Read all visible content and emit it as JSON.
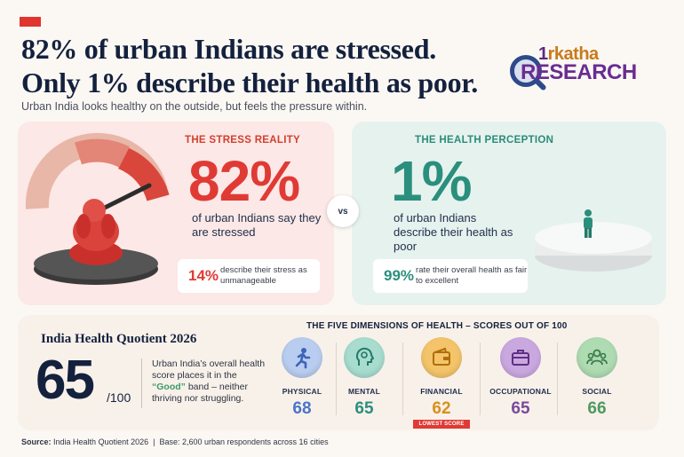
{
  "header": {
    "headline_line1": "82% of urban Indians are stressed.",
    "headline_line2": "Only 1% describe their health as poor.",
    "subhead": "Urban India looks healthy on the outside, but feels the pressure within."
  },
  "logo": {
    "top_text_a": "1",
    "top_text_b": "rkatha",
    "bottom_text": "RESEARCH"
  },
  "stress": {
    "kicker": "THE STRESS REALITY",
    "value": "82%",
    "description": "of urban Indians say they are stressed",
    "stat_value": "14%",
    "stat_text": "describe their stress as unmanageable"
  },
  "vs_label": "vs",
  "health": {
    "kicker": "THE HEALTH PERCEPTION",
    "value": "1%",
    "description": "of urban Indians describe their health as poor",
    "stat_value": "99%",
    "stat_text": "rate their overall health as fair to excellent"
  },
  "quotient": {
    "title": "India Health Quotient 2026",
    "score": "65",
    "out_of": "/100",
    "desc_before": "Urban India’s overall health score places it in the ",
    "desc_good": "“Good”",
    "desc_after": " band – neither thriving nor struggling."
  },
  "dimensions": {
    "title": "THE FIVE DIMENSIONS OF HEALTH – SCORES OUT OF 100",
    "items": [
      {
        "label": "PHYSICAL",
        "score": "68",
        "icon": "running-person-icon",
        "color": "#4a74c9",
        "bg": "#b9cdf0"
      },
      {
        "label": "MENTAL",
        "score": "65",
        "icon": "head-brain-icon",
        "color": "#2a8f7c",
        "bg": "#a7dccf"
      },
      {
        "label": "FINANCIAL",
        "score": "62",
        "icon": "wallet-icon",
        "color": "#d9901a",
        "bg": "#f4c46a"
      },
      {
        "label": "OCCUPATIONAL",
        "score": "65",
        "icon": "briefcase-icon",
        "color": "#7a4a9a",
        "bg": "#c9a8e0"
      },
      {
        "label": "SOCIAL",
        "score": "66",
        "icon": "group-icon",
        "color": "#4e9a5e",
        "bg": "#aedbb2"
      }
    ],
    "lowest_label": "LOWEST SCORE"
  },
  "footer": {
    "source_label": "Source:",
    "source_text": "India Health Quotient 2026",
    "base_text": "Base: 2,600 urban respondents across 16 cities"
  }
}
